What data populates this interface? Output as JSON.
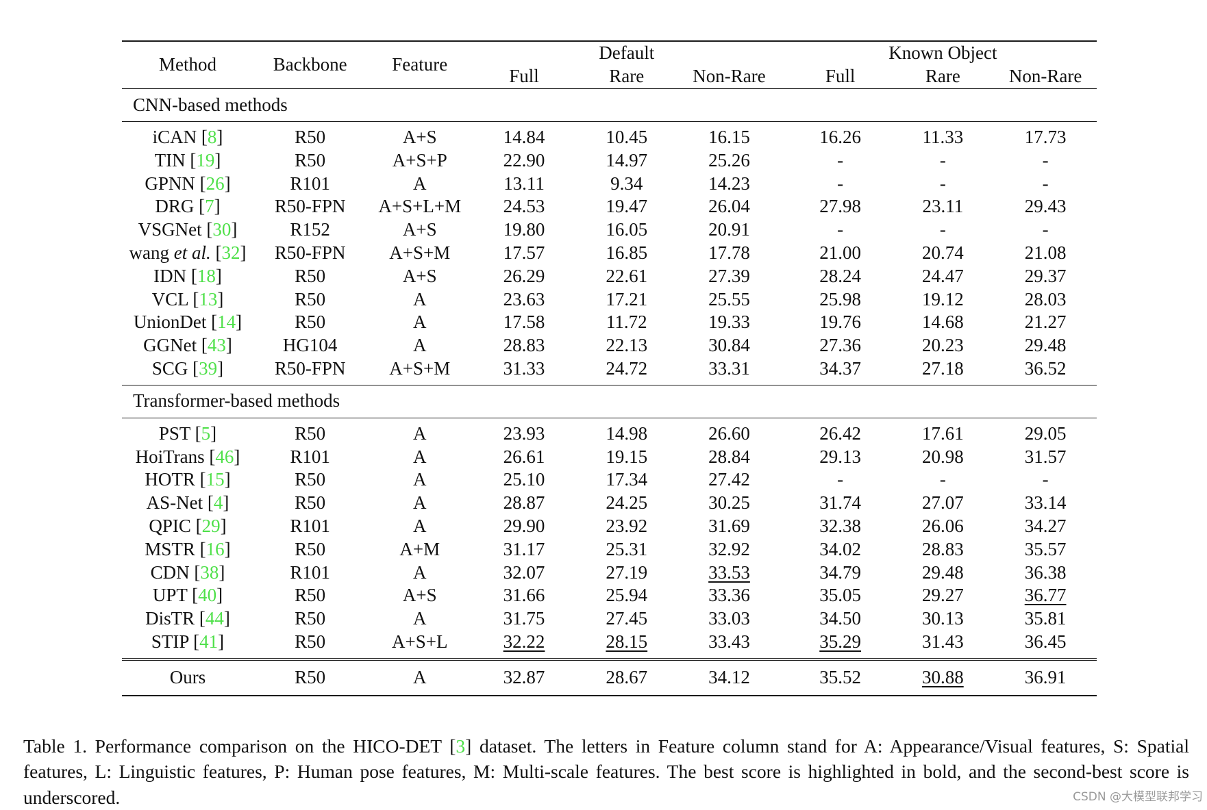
{
  "table": {
    "headers": {
      "method": "Method",
      "backbone": "Backbone",
      "feature": "Feature",
      "group_default": "Default",
      "group_known_object": "Known Object",
      "sub": [
        "Full",
        "Rare",
        "Non-Rare",
        "Full",
        "Rare",
        "Non-Rare"
      ]
    },
    "sections": [
      {
        "title": "CNN-based methods",
        "rows": [
          {
            "method": "iCAN",
            "cite": "8",
            "backbone": "R50",
            "feature": "A+S",
            "values": [
              "14.84",
              "10.45",
              "16.15",
              "16.26",
              "11.33",
              "17.73"
            ],
            "style": [
              "",
              "",
              "",
              "",
              "",
              ""
            ]
          },
          {
            "method": "TIN",
            "cite": "19",
            "backbone": "R50",
            "feature": "A+S+P",
            "values": [
              "22.90",
              "14.97",
              "25.26",
              "-",
              "-",
              "-"
            ],
            "style": [
              "",
              "",
              "",
              "",
              "",
              ""
            ]
          },
          {
            "method": "GPNN",
            "cite": "26",
            "backbone": "R101",
            "feature": "A",
            "values": [
              "13.11",
              "9.34",
              "14.23",
              "-",
              "-",
              "-"
            ],
            "style": [
              "",
              "",
              "",
              "",
              "",
              ""
            ]
          },
          {
            "method": "DRG",
            "cite": "7",
            "backbone": "R50-FPN",
            "feature": "A+S+L+M",
            "values": [
              "24.53",
              "19.47",
              "26.04",
              "27.98",
              "23.11",
              "29.43"
            ],
            "style": [
              "",
              "",
              "",
              "",
              "",
              ""
            ]
          },
          {
            "method": "VSGNet",
            "cite": "30",
            "backbone": "R152",
            "feature": "A+S",
            "values": [
              "19.80",
              "16.05",
              "20.91",
              "-",
              "-",
              "-"
            ],
            "style": [
              "",
              "",
              "",
              "",
              "",
              ""
            ]
          },
          {
            "method": "wang",
            "method_italic": "et al.",
            "cite": "32",
            "backbone": "R50-FPN",
            "feature": "A+S+M",
            "values": [
              "17.57",
              "16.85",
              "17.78",
              "21.00",
              "20.74",
              "21.08"
            ],
            "style": [
              "",
              "",
              "",
              "",
              "",
              ""
            ]
          },
          {
            "method": "IDN",
            "cite": "18",
            "backbone": "R50",
            "feature": "A+S",
            "values": [
              "26.29",
              "22.61",
              "27.39",
              "28.24",
              "24.47",
              "29.37"
            ],
            "style": [
              "",
              "",
              "",
              "",
              "",
              ""
            ]
          },
          {
            "method": "VCL",
            "cite": "13",
            "backbone": "R50",
            "feature": "A",
            "values": [
              "23.63",
              "17.21",
              "25.55",
              "25.98",
              "19.12",
              "28.03"
            ],
            "style": [
              "",
              "",
              "",
              "",
              "",
              ""
            ]
          },
          {
            "method": "UnionDet",
            "cite": "14",
            "backbone": "R50",
            "feature": "A",
            "values": [
              "17.58",
              "11.72",
              "19.33",
              "19.76",
              "14.68",
              "21.27"
            ],
            "style": [
              "",
              "",
              "",
              "",
              "",
              ""
            ]
          },
          {
            "method": "GGNet",
            "cite": "43",
            "backbone": "HG104",
            "feature": "A",
            "values": [
              "28.83",
              "22.13",
              "30.84",
              "27.36",
              "20.23",
              "29.48"
            ],
            "style": [
              "",
              "",
              "",
              "",
              "",
              ""
            ]
          },
          {
            "method": "SCG",
            "cite": "39",
            "backbone": "R50-FPN",
            "feature": "A+S+M",
            "values": [
              "31.33",
              "24.72",
              "33.31",
              "34.37",
              "27.18",
              "36.52"
            ],
            "style": [
              "",
              "",
              "",
              "",
              "",
              ""
            ]
          }
        ]
      },
      {
        "title": "Transformer-based methods",
        "rows": [
          {
            "method": "PST",
            "cite": "5",
            "backbone": "R50",
            "feature": "A",
            "values": [
              "23.93",
              "14.98",
              "26.60",
              "26.42",
              "17.61",
              "29.05"
            ],
            "style": [
              "",
              "",
              "",
              "",
              "",
              ""
            ]
          },
          {
            "method": "HoiTrans",
            "cite": "46",
            "backbone": "R101",
            "feature": "A",
            "values": [
              "26.61",
              "19.15",
              "28.84",
              "29.13",
              "20.98",
              "31.57"
            ],
            "style": [
              "",
              "",
              "",
              "",
              "",
              ""
            ]
          },
          {
            "method": "HOTR",
            "cite": "15",
            "backbone": "R50",
            "feature": "A",
            "values": [
              "25.10",
              "17.34",
              "27.42",
              "-",
              "-",
              "-"
            ],
            "style": [
              "",
              "",
              "",
              "",
              "",
              ""
            ]
          },
          {
            "method": "AS-Net",
            "cite": "4",
            "backbone": "R50",
            "feature": "A",
            "values": [
              "28.87",
              "24.25",
              "30.25",
              "31.74",
              "27.07",
              "33.14"
            ],
            "style": [
              "",
              "",
              "",
              "",
              "",
              ""
            ]
          },
          {
            "method": "QPIC",
            "cite": "29",
            "backbone": "R101",
            "feature": "A",
            "values": [
              "29.90",
              "23.92",
              "31.69",
              "32.38",
              "26.06",
              "34.27"
            ],
            "style": [
              "",
              "",
              "",
              "",
              "",
              ""
            ]
          },
          {
            "method": "MSTR",
            "cite": "16",
            "backbone": "R50",
            "feature": "A+M",
            "values": [
              "31.17",
              "25.31",
              "32.92",
              "34.02",
              "28.83",
              "35.57"
            ],
            "style": [
              "",
              "",
              "",
              "",
              "",
              ""
            ]
          },
          {
            "method": "CDN",
            "cite": "38",
            "backbone": "R101",
            "feature": "A",
            "values": [
              "32.07",
              "27.19",
              "33.53",
              "34.79",
              "29.48",
              "36.38"
            ],
            "style": [
              "",
              "",
              "second",
              "",
              "",
              ""
            ]
          },
          {
            "method": "UPT",
            "cite": "40",
            "backbone": "R50",
            "feature": "A+S",
            "values": [
              "31.66",
              "25.94",
              "33.36",
              "35.05",
              "29.27",
              "36.77"
            ],
            "style": [
              "",
              "",
              "",
              "",
              "",
              "second"
            ]
          },
          {
            "method": "DisTR",
            "cite": "44",
            "backbone": "R50",
            "feature": "A",
            "values": [
              "31.75",
              "27.45",
              "33.03",
              "34.50",
              "30.13",
              "35.81"
            ],
            "style": [
              "",
              "",
              "",
              "",
              "",
              ""
            ]
          },
          {
            "method": "STIP",
            "cite": "41",
            "backbone": "R50",
            "feature": "A+S+L",
            "values": [
              "32.22",
              "28.15",
              "33.43",
              "35.29",
              "31.43",
              "36.45"
            ],
            "style": [
              "second",
              "second",
              "",
              "second",
              "best",
              ""
            ]
          }
        ]
      }
    ],
    "ours": {
      "method": "Ours",
      "backbone": "R50",
      "feature": "A",
      "values": [
        "32.87",
        "28.67",
        "34.12",
        "35.52",
        "30.88",
        "36.91"
      ],
      "style": [
        "best",
        "best",
        "best",
        "best",
        "second",
        "best"
      ]
    }
  },
  "caption": {
    "label": "Table 1.",
    "text_before_cite": " Performance comparison on the HICO-DET [",
    "cite": "3",
    "text_after_cite": "] dataset. The letters in Feature column stand for A: Appearance/Visual features, S: Spatial features, L: Linguistic features, P: Human pose features, M: Multi-scale features. The best score is highlighted in bold, and the second-best score is underscored."
  },
  "watermark": "CSDN @大模型联邦学习",
  "colors": {
    "citation": "#4fe04a",
    "text": "#111111",
    "rule": "#1a1a1a"
  }
}
